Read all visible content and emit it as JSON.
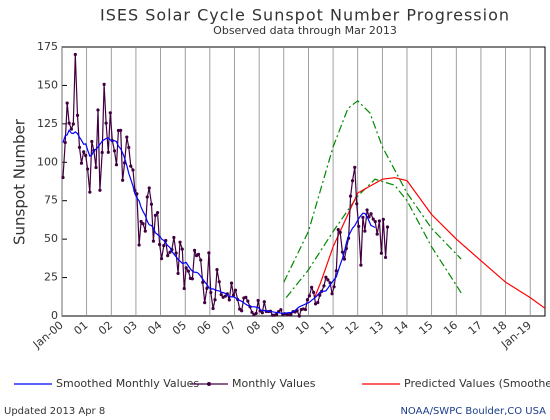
{
  "chart_data": {
    "type": "line",
    "title": "ISES Solar Cycle Sunspot Number Progression",
    "subtitle": "Observed data through Mar 2013",
    "y_label": "Sunspot Number",
    "updated": "Updated 2013 Apr  8",
    "credit": "NOAA/SWPC Boulder,CO USA",
    "xlim": [
      2000,
      2019.6
    ],
    "ylim": [
      0,
      175
    ],
    "yticks": [
      0,
      25,
      50,
      75,
      100,
      125,
      150,
      175
    ],
    "xticks": [
      {
        "value": 2000,
        "label": "Jan-00"
      },
      {
        "value": 2001,
        "label": "01"
      },
      {
        "value": 2002,
        "label": "02"
      },
      {
        "value": 2003,
        "label": "03"
      },
      {
        "value": 2004,
        "label": "04"
      },
      {
        "value": 2005,
        "label": "05"
      },
      {
        "value": 2006,
        "label": "06"
      },
      {
        "value": 2007,
        "label": "07"
      },
      {
        "value": 2008,
        "label": "08"
      },
      {
        "value": 2009,
        "label": "09"
      },
      {
        "value": 2010,
        "label": "10"
      },
      {
        "value": 2011,
        "label": "11"
      },
      {
        "value": 2012,
        "label": "12"
      },
      {
        "value": 2013,
        "label": "13"
      },
      {
        "value": 2014,
        "label": "14"
      },
      {
        "value": 2015,
        "label": "15"
      },
      {
        "value": 2016,
        "label": "16"
      },
      {
        "value": 2017,
        "label": "17"
      },
      {
        "value": 2018,
        "label": "18"
      },
      {
        "value": 2019,
        "label": "Jan-19"
      }
    ],
    "grid": "x",
    "series": [
      {
        "color": "#008800",
        "line_style": "dashdot",
        "x": [
          2009.0,
          2010.0,
          2011.0,
          2011.6,
          2012.0,
          2012.5,
          2013.0,
          2014.0,
          2015.0,
          2016.2
        ],
        "values": [
          22,
          55,
          110,
          135,
          140,
          132,
          110,
          80,
          57,
          37
        ]
      },
      {
        "color": "#008800",
        "line_style": "dashdot",
        "x": [
          2009.1,
          2010.0,
          2011.0,
          2012.0,
          2012.7,
          2013.5,
          2014.0,
          2015.0,
          2016.2
        ],
        "values": [
          12,
          30,
          55,
          78,
          89,
          85,
          75,
          45,
          15
        ]
      },
      {
        "name": "Predicted Values (Smoothed)",
        "color": "#ff0000",
        "x": [
          2010.25,
          2010.5,
          2011.0,
          2012.0,
          2013.0,
          2013.5,
          2014.0,
          2015.0,
          2016.0,
          2017.0,
          2018.0,
          2019.0,
          2019.6
        ],
        "values": [
          12,
          22,
          45,
          80,
          89,
          90,
          88,
          66,
          50,
          36,
          22,
          12,
          5
        ]
      },
      {
        "name": "Monthly Values",
        "color": "#400040",
        "markers": true,
        "x": [
          2000.04,
          2000.13,
          2000.21,
          2000.29,
          2000.38,
          2000.46,
          2000.54,
          2000.63,
          2000.71,
          2000.79,
          2000.88,
          2000.96,
          2001.04,
          2001.13,
          2001.21,
          2001.29,
          2001.38,
          2001.46,
          2001.54,
          2001.63,
          2001.71,
          2001.79,
          2001.88,
          2001.96,
          2002.04,
          2002.13,
          2002.21,
          2002.29,
          2002.38,
          2002.46,
          2002.54,
          2002.63,
          2002.71,
          2002.79,
          2002.88,
          2002.96,
          2003.04,
          2003.13,
          2003.21,
          2003.29,
          2003.38,
          2003.46,
          2003.54,
          2003.63,
          2003.71,
          2003.79,
          2003.88,
          2003.96,
          2004.04,
          2004.13,
          2004.21,
          2004.29,
          2004.38,
          2004.46,
          2004.54,
          2004.63,
          2004.71,
          2004.79,
          2004.88,
          2004.96,
          2005.04,
          2005.13,
          2005.21,
          2005.29,
          2005.38,
          2005.46,
          2005.54,
          2005.63,
          2005.71,
          2005.79,
          2005.88,
          2005.96,
          2006.04,
          2006.13,
          2006.21,
          2006.29,
          2006.38,
          2006.46,
          2006.54,
          2006.63,
          2006.71,
          2006.79,
          2006.88,
          2006.96,
          2007.04,
          2007.13,
          2007.21,
          2007.29,
          2007.38,
          2007.46,
          2007.54,
          2007.63,
          2007.71,
          2007.79,
          2007.88,
          2007.96,
          2008.04,
          2008.13,
          2008.21,
          2008.29,
          2008.38,
          2008.46,
          2008.54,
          2008.63,
          2008.71,
          2008.79,
          2008.88,
          2008.96,
          2009.04,
          2009.13,
          2009.21,
          2009.29,
          2009.38,
          2009.46,
          2009.54,
          2009.63,
          2009.71,
          2009.79,
          2009.88,
          2009.96,
          2010.04,
          2010.13,
          2010.21,
          2010.29,
          2010.38,
          2010.46,
          2010.54,
          2010.63,
          2010.71,
          2010.79,
          2010.88,
          2010.96,
          2011.04,
          2011.13,
          2011.21,
          2011.29,
          2011.38,
          2011.46,
          2011.54,
          2011.63,
          2011.71,
          2011.79,
          2011.88,
          2011.96,
          2012.04,
          2012.13,
          2012.21,
          2012.29,
          2012.38,
          2012.46,
          2012.54,
          2012.63,
          2012.71,
          2012.79,
          2012.88,
          2012.96,
          2013.04,
          2013.13,
          2013.21
        ],
        "values": [
          90.1,
          112.9,
          138.5,
          125.5,
          121.6,
          124.9,
          170.1,
          130.5,
          109.7,
          99.4,
          106.8,
          104.4,
          95.6,
          80.6,
          113.5,
          107.7,
          96.6,
          134.0,
          81.8,
          106.4,
          150.7,
          125.5,
          106.5,
          132.2,
          114.1,
          107.4,
          98.4,
          120.7,
          120.8,
          88.3,
          99.6,
          116.4,
          109.6,
          97.5,
          95.0,
          81.6,
          79.5,
          46.2,
          61.5,
          60.0,
          55.2,
          77.4,
          83.3,
          72.7,
          48.7,
          65.5,
          67.3,
          46.5,
          37.3,
          45.8,
          49.1,
          39.3,
          41.5,
          43.2,
          51.1,
          40.9,
          27.7,
          48.0,
          43.5,
          17.9,
          31.3,
          29.2,
          24.5,
          24.2,
          42.7,
          39.3,
          40.1,
          36.4,
          21.9,
          8.7,
          18.0,
          41.1,
          15.3,
          4.9,
          10.6,
          30.2,
          22.3,
          13.9,
          12.2,
          12.9,
          14.4,
          10.5,
          21.4,
          13.6,
          16.8,
          10.7,
          4.5,
          3.4,
          11.7,
          12.1,
          9.7,
          6.0,
          2.4,
          0.9,
          1.7,
          10.1,
          3.3,
          2.1,
          9.3,
          2.9,
          2.9,
          3.1,
          0.5,
          0.5,
          1.1,
          2.9,
          4.1,
          0.8,
          1.5,
          1.4,
          0.7,
          1.2,
          2.9,
          2.6,
          3.5,
          0.0,
          4.2,
          4.6,
          4.2,
          10.6,
          13.1,
          18.6,
          15.4,
          7.9,
          8.8,
          13.5,
          16.1,
          19.6,
          25.2,
          23.5,
          21.6,
          14.5,
          19.0,
          29.4,
          56.2,
          54.4,
          41.6,
          37.0,
          43.9,
          50.6,
          78.0,
          88.0,
          96.7,
          73.0,
          58.3,
          33.1,
          64.2,
          55.2,
          69.0,
          64.5,
          66.5,
          63.0,
          61.4,
          53.3,
          61.8,
          40.8,
          62.9,
          38.1,
          57.9
        ]
      },
      {
        "name": "Smoothed Monthly Values",
        "color": "#0000ff",
        "x": [
          2000.04,
          2000.13,
          2000.21,
          2000.29,
          2000.38,
          2000.46,
          2000.54,
          2000.63,
          2000.71,
          2000.79,
          2000.88,
          2000.96,
          2001.04,
          2001.13,
          2001.21,
          2001.29,
          2001.38,
          2001.46,
          2001.54,
          2001.63,
          2001.71,
          2001.79,
          2001.88,
          2001.96,
          2002.04,
          2002.13,
          2002.21,
          2002.29,
          2002.38,
          2002.46,
          2002.54,
          2002.63,
          2002.71,
          2002.79,
          2002.88,
          2002.96,
          2003.04,
          2003.13,
          2003.21,
          2003.29,
          2003.38,
          2003.46,
          2003.54,
          2003.63,
          2003.71,
          2003.79,
          2003.88,
          2003.96,
          2004.04,
          2004.13,
          2004.21,
          2004.29,
          2004.38,
          2004.46,
          2004.54,
          2004.63,
          2004.71,
          2004.79,
          2004.88,
          2004.96,
          2005.04,
          2005.13,
          2005.21,
          2005.29,
          2005.38,
          2005.46,
          2005.54,
          2005.63,
          2005.71,
          2005.79,
          2005.88,
          2005.96,
          2006.04,
          2006.13,
          2006.21,
          2006.29,
          2006.38,
          2006.46,
          2006.54,
          2006.63,
          2006.71,
          2006.79,
          2006.88,
          2006.96,
          2007.04,
          2007.13,
          2007.21,
          2007.29,
          2007.38,
          2007.46,
          2007.54,
          2007.63,
          2007.71,
          2007.79,
          2007.88,
          2007.96,
          2008.04,
          2008.13,
          2008.21,
          2008.29,
          2008.38,
          2008.46,
          2008.54,
          2008.63,
          2008.71,
          2008.79,
          2008.88,
          2008.96,
          2009.04,
          2009.13,
          2009.21,
          2009.29,
          2009.38,
          2009.46,
          2009.54,
          2009.63,
          2009.71,
          2009.79,
          2009.88,
          2009.96,
          2010.04,
          2010.13,
          2010.21,
          2010.29,
          2010.38,
          2010.46,
          2010.54,
          2010.63,
          2010.71,
          2010.79,
          2010.88,
          2010.96,
          2011.04,
          2011.13,
          2011.21,
          2011.29,
          2011.38,
          2011.46,
          2011.54,
          2011.63,
          2011.71,
          2011.79,
          2011.88,
          2011.96,
          2012.04,
          2012.13,
          2012.21,
          2012.29,
          2012.38,
          2012.46,
          2012.54,
          2012.63,
          2012.71
        ],
        "values": [
          112.9,
          117.2,
          117.9,
          120.8,
          119.0,
          118.7,
          119.8,
          118.6,
          116.3,
          114.3,
          111.7,
          112.0,
          108.1,
          104.0,
          104.8,
          107.5,
          108.6,
          109.8,
          111.7,
          113.7,
          114.6,
          115.5,
          115.8,
          114.6,
          113.7,
          114.1,
          113.4,
          110.5,
          108.8,
          106.1,
          102.8,
          97.9,
          92.8,
          88.9,
          84.5,
          79.5,
          76.9,
          74.9,
          70.7,
          67.9,
          65.4,
          61.6,
          59.3,
          58.9,
          57.1,
          54.1,
          53.0,
          52.0,
          50.0,
          49.2,
          47.4,
          45.8,
          44.6,
          42.0,
          40.3,
          38.5,
          36.8,
          35.7,
          34.2,
          34.5,
          34.8,
          32.5,
          30.6,
          29.2,
          28.4,
          28.4,
          27.7,
          25.8,
          24.1,
          22.2,
          20.4,
          18.5,
          17.6,
          17.6,
          17.0,
          16.5,
          16.3,
          15.5,
          15.2,
          14.7,
          13.6,
          12.6,
          12.4,
          12.5,
          11.9,
          10.6,
          10.1,
          9.6,
          8.6,
          7.6,
          6.9,
          6.4,
          6.0,
          6.0,
          5.8,
          5.5,
          4.2,
          3.6,
          3.6,
          3.3,
          3.0,
          2.9,
          2.7,
          2.5,
          2.3,
          2.2,
          1.8,
          1.7,
          1.8,
          1.9,
          2.2,
          2.3,
          2.7,
          3.6,
          4.8,
          5.9,
          6.6,
          7.1,
          7.8,
          8.3,
          8.9,
          10.2,
          11.2,
          12.2,
          13.8,
          15.4,
          16.0,
          16.1,
          16.4,
          18.1,
          20.2,
          21.9,
          23.6,
          25.5,
          29.4,
          33.4,
          37.3,
          41.8,
          47.6,
          52.1,
          54.7,
          57.1,
          58.8,
          61.1,
          63.4,
          65.4,
          66.9,
          66.8,
          64.6,
          61.7,
          58.9,
          58.2,
          57.6
        ]
      }
    ],
    "legend_order": [
      4,
      3,
      2
    ]
  }
}
